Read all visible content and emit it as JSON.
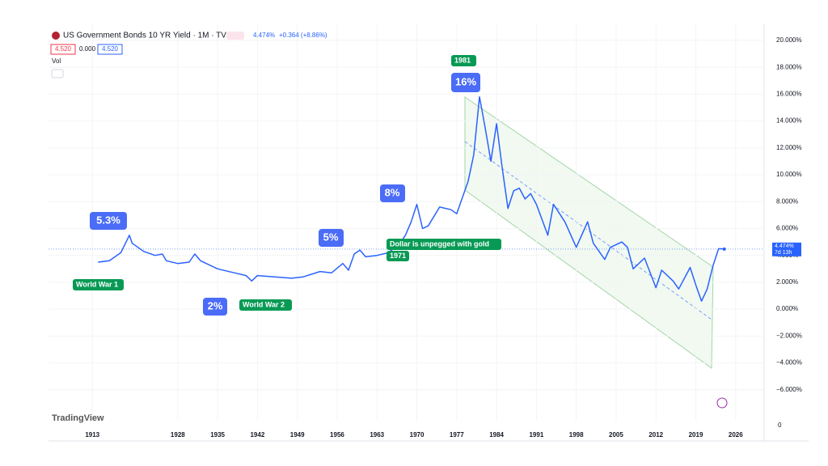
{
  "header": {
    "title": "US Government Bonds 10 YR Yield · 1M · TVC",
    "last": "4.474%",
    "change": "+0.364 (+8.86%)",
    "open": "4.520",
    "spread": "0.000",
    "close": "4.520",
    "vol": "Vol",
    "logo": "TradingView",
    "volume_zero": "0"
  },
  "chart_data": {
    "type": "line",
    "x": [
      1914,
      1916,
      1918,
      1919.5,
      1920,
      1922,
      1924,
      1925.3,
      1926,
      1928,
      1930,
      1931,
      1932,
      1935,
      1938,
      1940,
      1941,
      1942,
      1945,
      1948,
      1950,
      1953,
      1955,
      1957,
      1958,
      1959,
      1960,
      1961,
      1963,
      1965,
      1967,
      1968,
      1969,
      1970,
      1971,
      1972,
      1974,
      1976,
      1977,
      1979,
      1980,
      1981,
      1982,
      1983,
      1984,
      1985,
      1986,
      1987,
      1988,
      1989,
      1990,
      1991,
      1993,
      1994,
      1996,
      1998,
      2000,
      2001,
      2003,
      2004,
      2006,
      2007,
      2008,
      2010,
      2012,
      2013,
      2015,
      2016,
      2018,
      2019,
      2020,
      2021,
      2022,
      2023,
      2024
    ],
    "series": [
      {
        "name": "US Government Bonds 10 YR Yield",
        "color": "#2962ff",
        "values": [
          3.5,
          3.6,
          4.2,
          5.5,
          4.9,
          4.3,
          4.0,
          4.1,
          3.6,
          3.4,
          3.5,
          4.1,
          3.6,
          3.0,
          2.7,
          2.5,
          2.1,
          2.5,
          2.4,
          2.3,
          2.4,
          2.8,
          2.7,
          3.4,
          2.9,
          4.1,
          4.4,
          3.9,
          4.0,
          4.2,
          4.9,
          5.5,
          6.5,
          7.8,
          6.0,
          6.2,
          7.6,
          7.4,
          7.1,
          9.5,
          11.5,
          15.8,
          13.5,
          11.0,
          13.8,
          10.5,
          7.5,
          8.8,
          9.0,
          8.2,
          8.6,
          7.8,
          5.5,
          7.8,
          6.5,
          4.6,
          6.5,
          4.9,
          3.7,
          4.6,
          5.0,
          4.6,
          3.0,
          3.8,
          1.6,
          2.9,
          2.1,
          1.5,
          3.1,
          1.8,
          0.6,
          1.5,
          3.2,
          4.5,
          4.474
        ]
      }
    ],
    "last_label": "4.474%",
    "countdown": "7d 13h",
    "xlim": [
      1905.3,
      2031
    ],
    "xticks": [
      1913,
      1928,
      1935,
      1942,
      1949,
      1956,
      1963,
      1970,
      1977,
      1984,
      1991,
      1998,
      2005,
      2012,
      2019,
      2026
    ],
    "ylim": [
      -8.3,
      21.2
    ],
    "yticks": [
      {
        "value": -6,
        "label": "−6.000%"
      },
      {
        "value": -4,
        "label": "−4.000%"
      },
      {
        "value": -2,
        "label": "−2.000%"
      },
      {
        "value": 0,
        "label": "0.000%"
      },
      {
        "value": 2,
        "label": "2.000%"
      },
      {
        "value": 4,
        "label": "4.000%"
      },
      {
        "value": 6,
        "label": "6.000%"
      },
      {
        "value": 8,
        "label": "8.000%"
      },
      {
        "value": 10,
        "label": "10.000%"
      },
      {
        "value": 12,
        "label": "12.000%"
      },
      {
        "value": 14,
        "label": "14.000%"
      },
      {
        "value": 16,
        "label": "16.000%"
      },
      {
        "value": 18,
        "label": "18.000%"
      },
      {
        "value": 20,
        "label": "20.000%"
      }
    ],
    "annotations": [
      "5.3%",
      "2%",
      "5%",
      "8%",
      "16%",
      "World War 1",
      "World War 2",
      "Dollar is unpegged with gold",
      "1971",
      "1981"
    ]
  }
}
